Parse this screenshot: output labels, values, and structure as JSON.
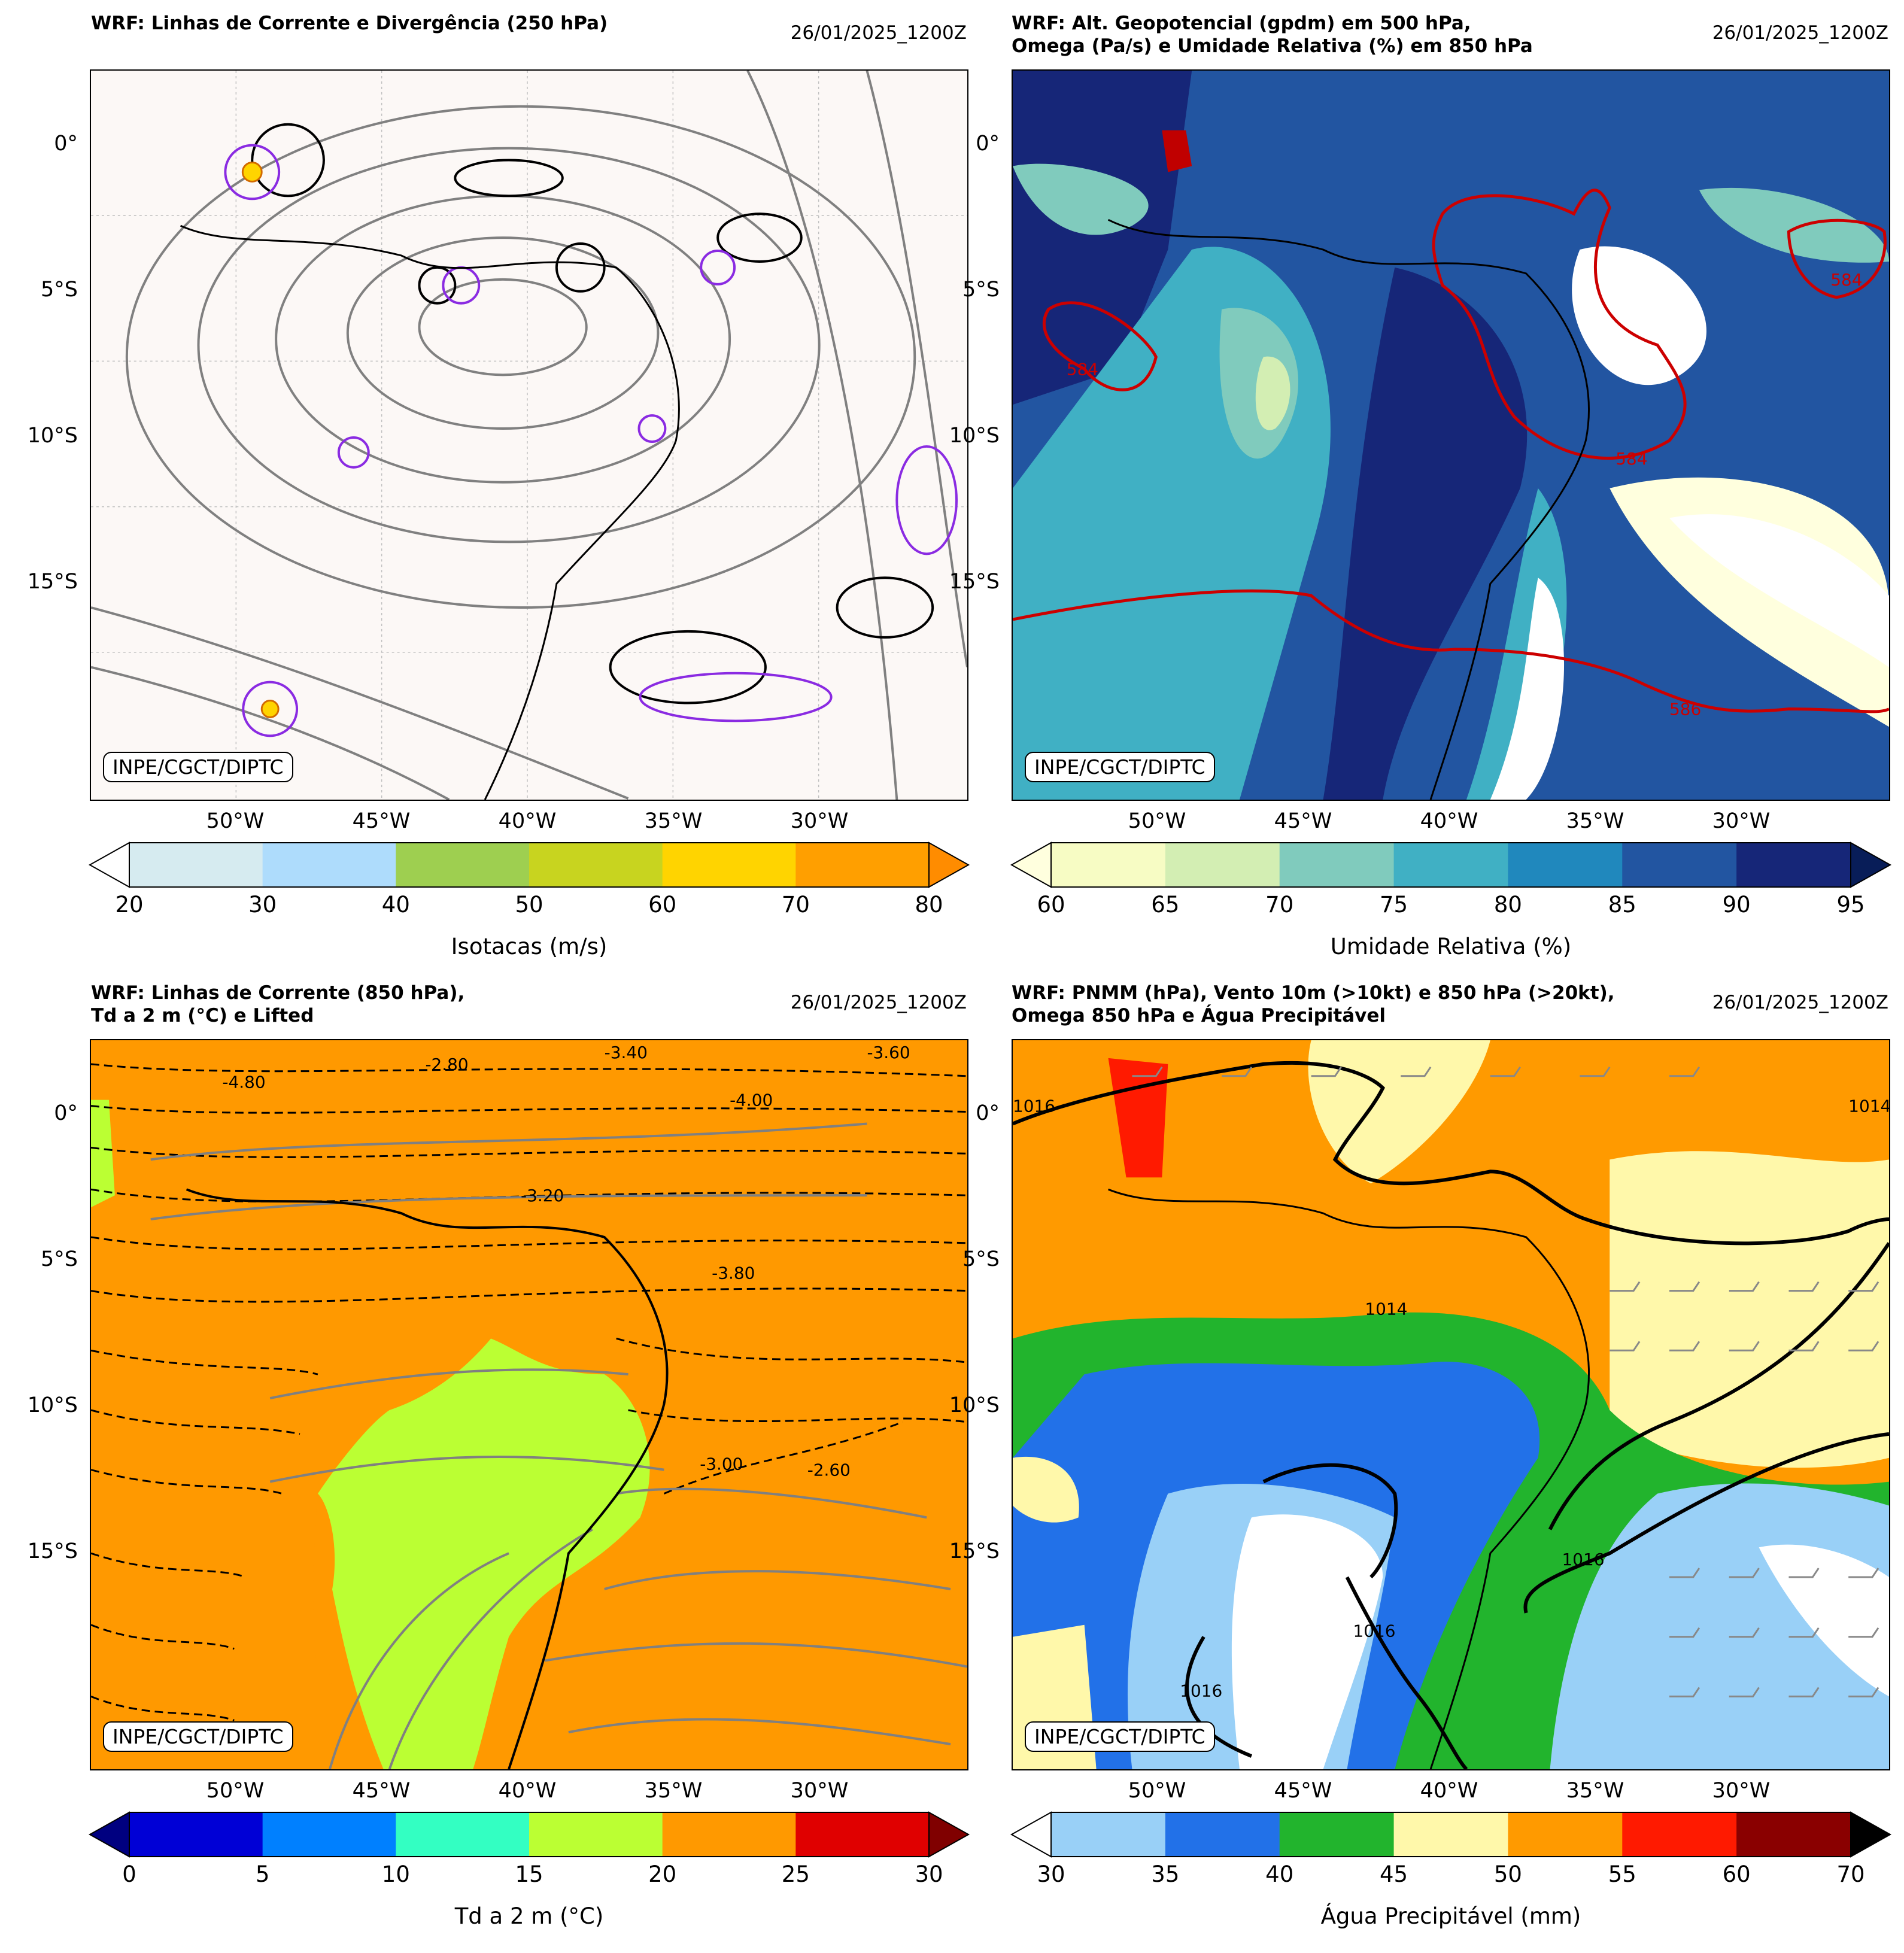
{
  "credit": "INPE/CGCT/DIPTC",
  "lat_labels": [
    "0°",
    "5°S",
    "10°S",
    "15°S"
  ],
  "lon_labels": [
    "50°W",
    "45°W",
    "40°W",
    "35°W",
    "30°W"
  ],
  "panels": [
    {
      "title": "WRF: Linhas de Corrente e Divergência (250 hPa)",
      "date": "26/01/2025_1200Z",
      "colorbar": {
        "label": "Isotacas (m/s)",
        "ticks": [
          "20",
          "30",
          "40",
          "50",
          "60",
          "70",
          "80"
        ],
        "colors": [
          "#d6ebf0",
          "#aedcfc",
          "#9ecf50",
          "#c8d41f",
          "#ffd400",
          "#ff9f00"
        ],
        "under": "#ffffff",
        "over": "#ff8c00"
      }
    },
    {
      "title": "WRF: Alt. Geopotencial (gpdm) em 500 hPa,\nOmega (Pa/s) e Umidade Relativa (%) em 850 hPa",
      "date": "26/01/2025_1200Z",
      "contour_labels": [
        "584",
        "584",
        "584",
        "586"
      ],
      "colorbar": {
        "label": "Umidade Relativa (%)",
        "ticks": [
          "60",
          "65",
          "70",
          "75",
          "80",
          "85",
          "90",
          "95"
        ],
        "colors": [
          "#f7fcc4",
          "#d3eeb3",
          "#80cbbd",
          "#40b0c4",
          "#2088bd",
          "#2255a1",
          "#162678"
        ],
        "under": "#ffffde",
        "over": "#081d58"
      }
    },
    {
      "title": "WRF: Linhas de Corrente (850 hPa),\nTd a 2 m (°C) e Lifted",
      "date": "26/01/2025_1200Z",
      "contour_labels": [
        "-3.60",
        "-2.80",
        "-3.40",
        "-4.00",
        "-3.20",
        "-4.80",
        "-3.00",
        "-2.60",
        "-3.80"
      ],
      "colorbar": {
        "label": "Td a 2 m (°C)",
        "ticks": [
          "0",
          "5",
          "10",
          "15",
          "20",
          "25",
          "30"
        ],
        "colors": [
          "#0000d6",
          "#0080ff",
          "#33ffc2",
          "#bbff33",
          "#ff9900",
          "#e00000"
        ],
        "under": "#000080",
        "over": "#800000"
      }
    },
    {
      "title": "WRF: PNMM (hPa), Vento 10m (>10kt) e 850 hPa (>20kt),\nOmega 850 hPa e Água Precipitável",
      "date": "26/01/2025_1200Z",
      "contour_labels": [
        "1016",
        "1014",
        "1016",
        "1016",
        "1016",
        "1014"
      ],
      "colorbar": {
        "label": "Água Precipitável (mm)",
        "ticks": [
          "30",
          "35",
          "40",
          "45",
          "50",
          "55",
          "60",
          "70"
        ],
        "colors": [
          "#99d0f7",
          "#2271e8",
          "#22b42d",
          "#fff8aa",
          "#ff9a00",
          "#ff1a00",
          "#8a0000"
        ],
        "under": "#ffffff",
        "over": "#000000"
      }
    }
  ]
}
